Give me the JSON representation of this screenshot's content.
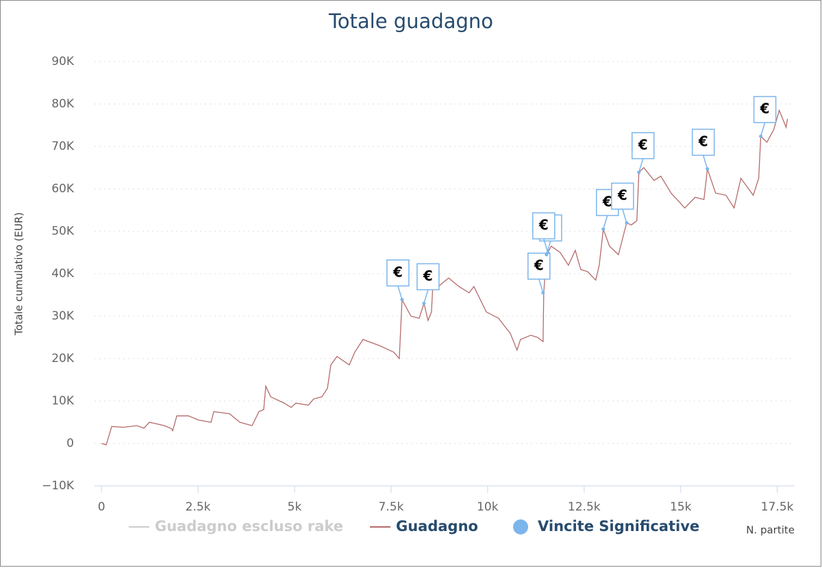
{
  "chart_data": {
    "type": "line",
    "title": "Totale guadagno",
    "y_axis_title": "Totale cumulativo (EUR)",
    "x_axis_title": "N. partite",
    "xlim": [
      -180,
      17950
    ],
    "ylim": [
      -10000,
      90000
    ],
    "grid": true,
    "xticks": [
      0,
      {
        "value": 2500,
        "label": "2.5k"
      },
      {
        "value": 5000,
        "label": "5k"
      },
      {
        "value": 7500,
        "label": "7.5k"
      },
      {
        "value": 10000,
        "label": "10k"
      },
      {
        "value": 12500,
        "label": "12.5k"
      },
      {
        "value": 15000,
        "label": "15k"
      },
      {
        "value": 17500,
        "label": "17.5k"
      }
    ],
    "yticks": [
      {
        "value": -10000,
        "label": "−10K"
      },
      0,
      {
        "value": 10000,
        "label": "10K"
      },
      {
        "value": 20000,
        "label": "20K"
      },
      {
        "value": 30000,
        "label": "30K"
      },
      {
        "value": 40000,
        "label": "40K"
      },
      {
        "value": 50000,
        "label": "50K"
      },
      {
        "value": 60000,
        "label": "60K"
      },
      {
        "value": 70000,
        "label": "70K"
      },
      {
        "value": 80000,
        "label": "80K"
      },
      {
        "value": 90000,
        "label": "90K"
      }
    ],
    "hidden_series": [
      {
        "name": "Guadagno escluso rake",
        "color": "#cccccc"
      }
    ],
    "series": [
      {
        "name": "Guadagno",
        "type": "line",
        "color": "#b56a6a",
        "x": [
          0,
          124,
          266,
          567,
          922,
          1099,
          1241,
          1631,
          1809,
          1844,
          1950,
          2252,
          2518,
          2837,
          2908,
          3316,
          3582,
          3901,
          4078,
          4202,
          4255,
          4380,
          4734,
          4911,
          5035,
          5355,
          5496,
          5709,
          5851,
          5940,
          6099,
          6418,
          6560,
          6773,
          7216,
          7571,
          7713,
          7784,
          8014,
          8227,
          8280,
          8351,
          8457,
          8546,
          8582,
          8723,
          8989,
          9255,
          9521,
          9645,
          9965,
          10284,
          10408,
          10585,
          10762,
          10851,
          11117,
          11294,
          11436,
          11454,
          11525,
          11649,
          11879,
          12092,
          12270,
          12411,
          12589,
          12801,
          12890,
          12996,
          13156,
          13387,
          13600,
          13723,
          13865,
          13918,
          14043,
          14309,
          14486,
          14752,
          15106,
          15372,
          15603,
          15691,
          15904,
          16170,
          16383,
          16560,
          16879,
          17021,
          17074,
          17234,
          17411,
          17553,
          17730,
          17766
        ],
        "values": [
          0,
          -300,
          4000,
          3800,
          4200,
          3600,
          5000,
          4200,
          3500,
          3000,
          6500,
          6500,
          5500,
          5000,
          7500,
          7000,
          5000,
          4200,
          7500,
          8000,
          13500,
          11000,
          9500,
          8500,
          9500,
          9000,
          10500,
          11000,
          13000,
          18500,
          20500,
          18500,
          21500,
          24500,
          23000,
          21500,
          20000,
          33900,
          30000,
          29500,
          31000,
          33000,
          29000,
          31000,
          37500,
          37000,
          39000,
          37000,
          35500,
          37000,
          31000,
          29500,
          28000,
          26000,
          22000,
          24500,
          25500,
          25000,
          24000,
          35500,
          44500,
          46500,
          45000,
          42000,
          45500,
          41000,
          40500,
          38500,
          42000,
          50500,
          46500,
          44500,
          52000,
          51500,
          52500,
          63900,
          65000,
          62000,
          63000,
          59000,
          55500,
          58000,
          57500,
          64700,
          59000,
          58500,
          55500,
          62500,
          58500,
          62500,
          72400,
          71000,
          74000,
          78500,
          74500,
          76500
        ]
      },
      {
        "name": "Vincite Significative",
        "type": "scatter",
        "color": "#7cb5ec",
        "x": [
          7784,
          8351,
          11436,
          11525,
          11560,
          12996,
          13600,
          13918,
          15691,
          17074
        ],
        "values": [
          33900,
          33000,
          35500,
          44500,
          45000,
          50500,
          52000,
          63900,
          64700,
          72400
        ],
        "labels": [
          "€",
          "€",
          "€",
          "€",
          "€",
          "€",
          "€",
          "€",
          "€",
          "€"
        ]
      }
    ]
  }
}
